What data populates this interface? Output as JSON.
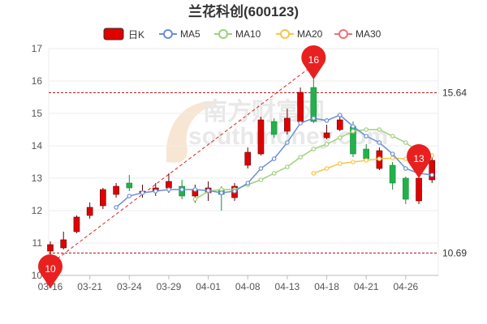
{
  "chart_data": {
    "type": "candlestick",
    "title": "兰花科创(600123)",
    "legend": [
      {
        "label": "日K",
        "color": "#e00000",
        "kind": "candle"
      },
      {
        "label": "MA5",
        "color": "#6b8fd6",
        "kind": "line"
      },
      {
        "label": "MA10",
        "color": "#9ed07c",
        "kind": "line"
      },
      {
        "label": "MA20",
        "color": "#f7c64a",
        "kind": "line"
      },
      {
        "label": "MA30",
        "color": "#f07070",
        "kind": "line"
      }
    ],
    "ylim": [
      10,
      17
    ],
    "yticks": [
      10,
      11,
      12,
      13,
      14,
      15,
      16,
      17
    ],
    "xtick_labels": [
      "03-16",
      "03-21",
      "03-24",
      "03-29",
      "04-01",
      "04-08",
      "04-13",
      "04-18",
      "04-21",
      "04-26"
    ],
    "xtick_index": [
      0,
      3,
      6,
      9,
      12,
      15,
      18,
      21,
      24,
      27
    ],
    "up_color": "#e00000",
    "down_color": "#22b14c",
    "candles": [
      {
        "o": 10.75,
        "c": 10.95,
        "h": 11.05,
        "l": 10.55
      },
      {
        "o": 10.85,
        "c": 11.1,
        "h": 11.35,
        "l": 10.8
      },
      {
        "o": 11.35,
        "c": 11.8,
        "h": 11.85,
        "l": 11.3
      },
      {
        "o": 11.85,
        "c": 12.1,
        "h": 12.25,
        "l": 11.75
      },
      {
        "o": 12.15,
        "c": 12.65,
        "h": 12.7,
        "l": 12.05
      },
      {
        "o": 12.5,
        "c": 12.75,
        "h": 12.85,
        "l": 12.4
      },
      {
        "o": 12.85,
        "c": 12.7,
        "h": 13.1,
        "l": 12.6
      },
      {
        "o": 12.55,
        "c": 12.6,
        "h": 12.8,
        "l": 12.4
      },
      {
        "o": 12.6,
        "c": 12.7,
        "h": 12.85,
        "l": 12.45
      },
      {
        "o": 12.7,
        "c": 12.9,
        "h": 13.15,
        "l": 12.55
      },
      {
        "o": 12.75,
        "c": 12.45,
        "h": 12.95,
        "l": 12.35
      },
      {
        "o": 12.45,
        "c": 12.65,
        "h": 12.8,
        "l": 12.25
      },
      {
        "o": 12.55,
        "c": 12.7,
        "h": 12.9,
        "l": 12.3
      },
      {
        "o": 12.65,
        "c": 12.5,
        "h": 12.75,
        "l": 12.0
      },
      {
        "o": 12.4,
        "c": 12.75,
        "h": 12.85,
        "l": 12.3
      },
      {
        "o": 13.4,
        "c": 13.8,
        "h": 13.95,
        "l": 13.3
      },
      {
        "o": 13.75,
        "c": 14.8,
        "h": 14.9,
        "l": 13.7
      },
      {
        "o": 14.75,
        "c": 14.35,
        "h": 14.85,
        "l": 14.25
      },
      {
        "o": 14.45,
        "c": 14.85,
        "h": 15.15,
        "l": 14.35
      },
      {
        "o": 14.75,
        "c": 15.65,
        "h": 15.8,
        "l": 14.7
      },
      {
        "o": 15.8,
        "c": 14.75,
        "h": 16.1,
        "l": 14.7
      },
      {
        "o": 14.25,
        "c": 14.4,
        "h": 14.65,
        "l": 14.2
      },
      {
        "o": 14.5,
        "c": 14.8,
        "h": 14.95,
        "l": 14.45
      },
      {
        "o": 14.6,
        "c": 13.75,
        "h": 14.75,
        "l": 13.65
      },
      {
        "o": 13.9,
        "c": 13.6,
        "h": 14.05,
        "l": 13.5
      },
      {
        "o": 13.3,
        "c": 13.85,
        "h": 13.95,
        "l": 13.25
      },
      {
        "o": 13.4,
        "c": 12.85,
        "h": 13.5,
        "l": 12.65
      },
      {
        "o": 13.0,
        "c": 12.35,
        "h": 13.05,
        "l": 12.2
      },
      {
        "o": 12.3,
        "c": 13.0,
        "h": 13.05,
        "l": 12.2
      },
      {
        "o": 12.95,
        "c": 13.55,
        "h": 13.65,
        "l": 12.85
      }
    ],
    "ma5": [
      null,
      null,
      null,
      null,
      null,
      12.1,
      12.45,
      12.55,
      12.6,
      12.65,
      12.65,
      12.65,
      12.62,
      12.55,
      12.6,
      12.85,
      13.3,
      13.6,
      14.1,
      14.7,
      14.85,
      14.78,
      14.95,
      14.6,
      14.3,
      14.1,
      13.75,
      13.3,
      13.15,
      13.1
    ],
    "ma10": [
      null,
      null,
      null,
      null,
      null,
      null,
      null,
      null,
      null,
      null,
      null,
      12.35,
      12.6,
      12.65,
      12.65,
      12.8,
      12.95,
      13.15,
      13.35,
      13.65,
      13.9,
      14.05,
      14.25,
      14.45,
      14.5,
      14.5,
      14.3,
      14.1,
      13.8,
      13.7
    ],
    "ma20": [
      null,
      null,
      null,
      null,
      null,
      null,
      null,
      null,
      null,
      null,
      null,
      null,
      null,
      null,
      null,
      null,
      null,
      null,
      null,
      null,
      13.15,
      13.3,
      13.45,
      13.5,
      13.55,
      13.6,
      13.62,
      13.6,
      13.6,
      13.7
    ],
    "ref_lines": [
      {
        "value": 15.64,
        "label": "15.64"
      },
      {
        "value": 10.69,
        "label": "10.69"
      }
    ],
    "markers": [
      {
        "index": 0,
        "value": 10.55,
        "label": "10",
        "position": "below"
      },
      {
        "index": 20,
        "value": 16.1,
        "label": "16",
        "position": "above"
      },
      {
        "index": 28,
        "value": 13.05,
        "label": "13",
        "position": "above"
      }
    ],
    "trend_line": {
      "from_index": 0,
      "from_value": 10.2,
      "to_index": 20,
      "to_value": 16.5
    },
    "watermark": "南方财富网 southmoney.com"
  }
}
